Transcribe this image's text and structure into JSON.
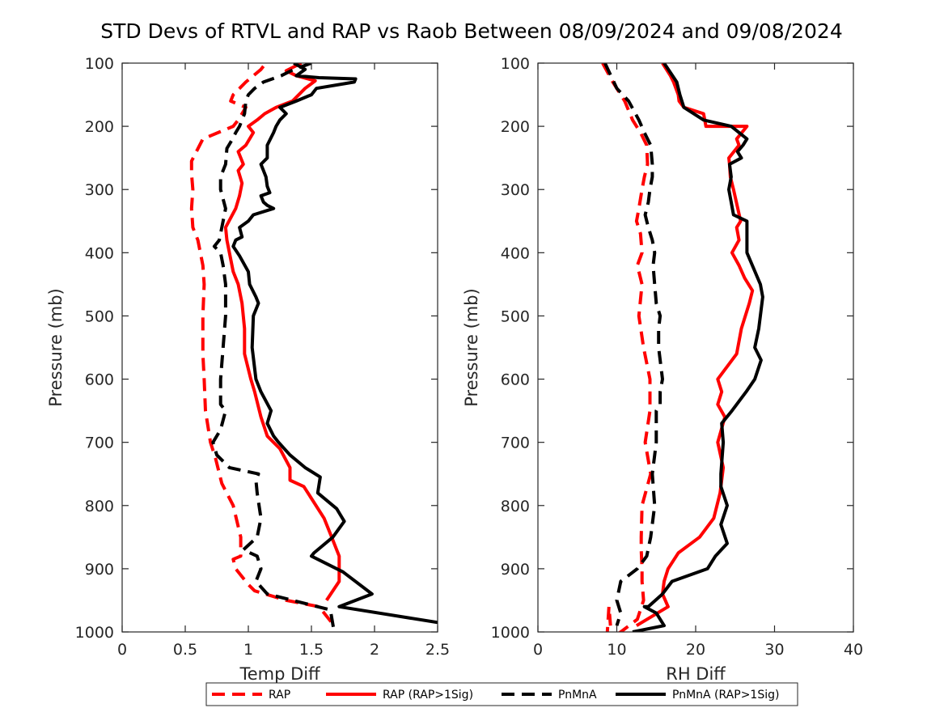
{
  "chart_data": {
    "title": "STD Devs of RTVL and RAP vs Raob Between 08/09/2024 and 09/08/2024",
    "legend": {
      "position": "bottom",
      "orientation": "horizontal",
      "entries": [
        {
          "label": "RAP",
          "color": "#ff0000",
          "dash": true
        },
        {
          "label": "RAP (RAP>1Sig)",
          "color": "#ff0000",
          "dash": false
        },
        {
          "label": "PnMnA",
          "color": "#000000",
          "dash": true
        },
        {
          "label": "PnMnA (RAP>1Sig)",
          "color": "#000000",
          "dash": false
        }
      ]
    },
    "panels": [
      {
        "type": "line",
        "xlabel": "Temp Diff",
        "ylabel": "Pressure (mb)",
        "xlim": [
          0,
          2.5
        ],
        "ylim": [
          100,
          1000
        ],
        "y_reversed": true,
        "xticks": [
          "0",
          "0.5",
          "1",
          "1.5",
          "2",
          "2.5"
        ],
        "yticks": [
          "100",
          "200",
          "300",
          "400",
          "500",
          "600",
          "700",
          "800",
          "900",
          "1000"
        ],
        "series": [
          {
            "name": "RAP",
            "color": "#ff0000",
            "dash": true,
            "x": [
              1.12,
              1.1,
              0.98,
              0.88,
              0.86,
              0.98,
              0.92,
              0.88,
              0.64,
              0.55,
              0.55,
              0.56,
              0.55,
              0.56,
              0.6,
              0.64,
              0.65,
              0.64,
              0.64,
              0.64,
              0.65,
              0.66,
              0.7,
              0.74,
              0.79,
              0.88,
              0.94,
              0.94,
              0.94,
              0.88,
              0.9,
              1.0,
              1.05,
              1.3,
              1.56,
              1.68
            ],
            "y": [
              105,
              110,
              130,
              150,
              160,
              170,
              190,
              200,
              220,
              255,
              275,
              300,
              330,
              360,
              380,
              420,
              450,
              500,
              525,
              560,
              600,
              650,
              700,
              725,
              765,
              800,
              850,
              875,
              880,
              885,
              900,
              925,
              935,
              950,
              960,
              990
            ]
          },
          {
            "name": "RAP (RAP>1Sig)",
            "color": "#ff0000",
            "dash": false,
            "x": [
              1.42,
              1.3,
              1.38,
              1.53,
              1.45,
              1.35,
              1.22,
              1.13,
              1.07,
              1.0,
              1.04,
              0.98,
              0.92,
              0.96,
              0.92,
              0.95,
              0.93,
              0.9,
              0.82,
              0.83,
              0.88,
              0.92,
              0.95,
              0.97,
              0.97,
              1.02,
              1.05,
              1.1,
              1.15,
              1.25,
              1.33,
              1.33,
              1.44,
              1.6,
              1.66,
              1.72,
              1.72,
              1.62
            ],
            "y": [
              100,
              112,
              120,
              128,
              140,
              160,
              170,
              180,
              190,
              200,
              210,
              230,
              240,
              260,
              270,
              290,
              310,
              330,
              360,
              380,
              430,
              450,
              480,
              520,
              560,
              600,
              620,
              660,
              690,
              710,
              740,
              760,
              770,
              820,
              850,
              880,
              920,
              950
            ]
          },
          {
            "name": "PnMnA",
            "color": "#000000",
            "dash": true,
            "x": [
              1.5,
              1.36,
              1.26,
              1.12,
              1.05,
              1.0,
              0.98,
              0.97,
              0.93,
              0.9,
              0.86,
              0.83,
              0.82,
              0.78,
              0.78,
              0.82,
              0.8,
              0.77,
              0.73,
              0.78,
              0.8,
              0.82,
              0.82,
              0.8,
              0.78,
              0.78,
              0.82,
              0.78,
              0.72,
              0.75,
              0.85,
              1.08,
              1.06,
              1.07,
              1.1,
              1.07,
              0.96,
              1.07,
              1.1,
              1.06,
              1.15,
              1.65,
              1.68
            ],
            "y": [
              100,
              110,
              120,
              130,
              140,
              150,
              160,
              180,
              200,
              210,
              225,
              235,
              260,
              280,
              300,
              330,
              350,
              380,
              390,
              400,
              420,
              450,
              500,
              550,
              600,
              640,
              650,
              680,
              700,
              720,
              740,
              750,
              760,
              780,
              820,
              850,
              870,
              880,
              900,
              920,
              940,
              965,
              1000
            ]
          },
          {
            "name": "PnMnA (RAP>1Sig)",
            "color": "#000000",
            "dash": false,
            "x": [
              1.36,
              1.45,
              1.38,
              1.56,
              1.85,
              1.84,
              1.54,
              1.5,
              1.38,
              1.25,
              1.3,
              1.25,
              1.22,
              1.2,
              1.15,
              1.15,
              1.1,
              1.12,
              1.14,
              1.15,
              1.17,
              1.1,
              1.12,
              1.15,
              1.2,
              1.04,
              1.0,
              0.93,
              0.95,
              0.9,
              0.88,
              0.93,
              1.0,
              1.01,
              1.06,
              1.08,
              1.04,
              1.03,
              1.06,
              1.1,
              1.18,
              1.15,
              1.2,
              1.24,
              1.33,
              1.45,
              1.57,
              1.55,
              1.7,
              1.76,
              1.67,
              1.52,
              1.5,
              1.75,
              1.98,
              1.72,
              2.5
            ],
            "y": [
              100,
              110,
              120,
              123,
              125,
              130,
              140,
              150,
              160,
              170,
              180,
              190,
              200,
              210,
              230,
              250,
              260,
              270,
              280,
              295,
              305,
              310,
              320,
              325,
              330,
              340,
              350,
              360,
              375,
              380,
              390,
              405,
              430,
              450,
              470,
              480,
              500,
              550,
              600,
              620,
              650,
              670,
              690,
              700,
              720,
              740,
              755,
              780,
              805,
              825,
              850,
              875,
              880,
              905,
              940,
              960,
              985
            ]
          }
        ]
      },
      {
        "type": "line",
        "xlabel": "RH Diff",
        "ylabel": "Pressure (mb)",
        "xlim": [
          0,
          40
        ],
        "ylim": [
          100,
          1000
        ],
        "y_reversed": true,
        "xticks": [
          "0",
          "10",
          "20",
          "30",
          "40"
        ],
        "yticks": [
          "100",
          "200",
          "300",
          "400",
          "500",
          "600",
          "700",
          "800",
          "900",
          "1000"
        ],
        "series": [
          {
            "name": "RAP",
            "color": "#ff0000",
            "dash": true,
            "x": [
              8.2,
              9.5,
              11,
              12,
              13,
              13.8,
              13.9,
              13.5,
              13.2,
              12.8,
              12.5,
              13,
              13.2,
              12.6,
              13.2,
              12.8,
              13.4,
              14.2,
              14.2,
              13.6,
              14.3,
              13.2,
              13.1,
              13.1,
              13.2,
              13.2,
              13.4,
              12.6,
              10.5,
              9.2,
              8.8,
              9,
              9.2
            ],
            "y": [
              100,
              130,
              160,
              190,
              210,
              230,
              260,
              280,
              300,
              330,
              350,
              370,
              400,
              420,
              450,
              500,
              550,
              600,
              650,
              700,
              750,
              800,
              850,
              870,
              900,
              920,
              950,
              980,
              1000,
              1010,
              1000,
              960,
              990
            ]
          },
          {
            "name": "RAP (RAP>1Sig)",
            "color": "#ff0000",
            "dash": false,
            "x": [
              15.8,
              16.8,
              17.2,
              17.8,
              17.9,
              18.5,
              21,
              21.3,
              26.5,
              25.2,
              25.5,
              24.2,
              24.3,
              24.4,
              24.8,
              25.7,
              25.2,
              25.5,
              24.6,
              25.5,
              26.2,
              27.2,
              26.8,
              25.8,
              25.2,
              22.8,
              23.3,
              22.8,
              23.7,
              22.8,
              23.5,
              23.1,
              22.3,
              20.5,
              17.8,
              16.5,
              16,
              15.8,
              16.5,
              12.5
            ],
            "y": [
              100,
              120,
              130,
              150,
              160,
              170,
              180,
              200,
              200,
              220,
              230,
              250,
              260,
              280,
              300,
              350,
              360,
              380,
              400,
              420,
              440,
              460,
              480,
              520,
              560,
              600,
              620,
              640,
              660,
              700,
              740,
              780,
              820,
              850,
              875,
              900,
              920,
              940,
              960,
              990
            ]
          },
          {
            "name": "PnMnA",
            "color": "#000000",
            "dash": true,
            "x": [
              8.5,
              10,
              11.5,
              12.8,
              13.5,
              14.3,
              14.5,
              14.5,
              14.2,
              14,
              13.6,
              14,
              14.5,
              14.8,
              14.6,
              14.8,
              15,
              15.5,
              15.3,
              15.3,
              15.8,
              15.5,
              15.5,
              15,
              15,
              14.5,
              14.8,
              14.3,
              13.8,
              12.6,
              10.5,
              10,
              10.5,
              10
            ],
            "y": [
              100,
              140,
              160,
              190,
              210,
              230,
              260,
              280,
              300,
              320,
              340,
              360,
              380,
              400,
              420,
              450,
              480,
              500,
              520,
              550,
              600,
              620,
              640,
              650,
              700,
              750,
              800,
              850,
              880,
              900,
              920,
              950,
              970,
              990
            ]
          },
          {
            "name": "PnMnA (RAP>1Sig)",
            "color": "#000000",
            "dash": false,
            "x": [
              16,
              17.6,
              18,
              18.5,
              21,
              24.5,
              26.5,
              26,
              25.3,
              25.8,
              24.3,
              24.5,
              24.2,
              24.5,
              24.8,
              26.5,
              26.5,
              26.5,
              28.2,
              28.5,
              28,
              27.5,
              28.3,
              27.5,
              26.4,
              24.6,
              23.3,
              23.5,
              23.2,
              23.2,
              24,
              23.2,
              24,
              22.5,
              21.5,
              17,
              15.8,
              14,
              13.5,
              15,
              16,
              12
            ],
            "y": [
              100,
              130,
              150,
              170,
              190,
              200,
              220,
              230,
              240,
              250,
              260,
              280,
              300,
              320,
              340,
              350,
              370,
              400,
              450,
              470,
              520,
              550,
              570,
              600,
              620,
              650,
              670,
              700,
              750,
              770,
              800,
              830,
              860,
              880,
              900,
              920,
              940,
              960,
              960,
              970,
              990,
              1000
            ]
          }
        ]
      }
    ]
  }
}
